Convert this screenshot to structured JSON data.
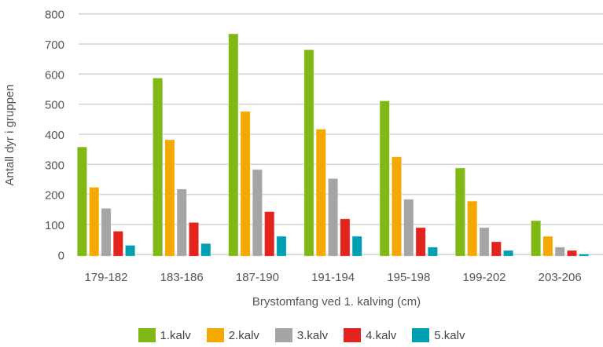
{
  "chart_data": {
    "type": "bar",
    "title": "",
    "xlabel": "Brystomfang ved 1. kalving  (cm)",
    "ylabel": "Antall dyr i gruppen",
    "ylim": [
      0,
      800
    ],
    "yticks": [
      "0",
      "100",
      "200",
      "300",
      "400",
      "500",
      "600",
      "700",
      "800"
    ],
    "grid": true,
    "legend_position": "bottom",
    "categories": [
      "179-182",
      "183-186",
      "187-190",
      "191-194",
      "195-198",
      "199-202",
      "203-206"
    ],
    "series": [
      {
        "name": "1.kalv",
        "color": "#80b814",
        "values": [
          358,
          587,
          734,
          681,
          511,
          288,
          113
        ]
      },
      {
        "name": "2.kalv",
        "color": "#f5a800",
        "values": [
          224,
          382,
          476,
          417,
          325,
          178,
          61
        ]
      },
      {
        "name": "3.kalv",
        "color": "#a5a5a5",
        "values": [
          154,
          218,
          283,
          253,
          184,
          90,
          25
        ]
      },
      {
        "name": "4.kalv",
        "color": "#e2231e",
        "values": [
          78,
          107,
          143,
          119,
          90,
          43,
          14
        ]
      },
      {
        "name": "5.kalv",
        "color": "#00a0b0",
        "values": [
          31,
          37,
          61,
          61,
          25,
          14,
          2
        ]
      }
    ]
  }
}
